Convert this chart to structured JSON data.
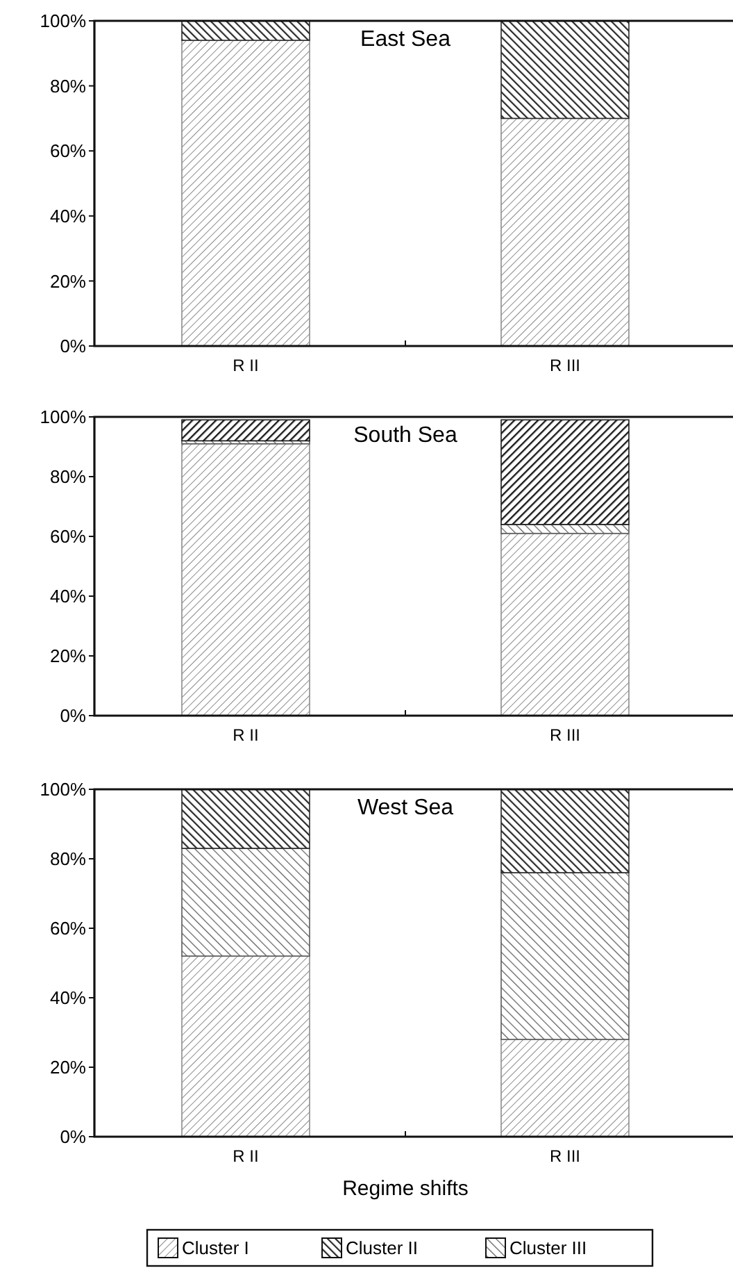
{
  "chart_data": [
    {
      "type": "bar",
      "title": "East Sea",
      "stacked": true,
      "categories": [
        "R II",
        "R III"
      ],
      "ylim": [
        0,
        100
      ],
      "yticks": [
        {
          "value": 0,
          "label": "0%"
        },
        {
          "value": 20,
          "label": "20%"
        },
        {
          "value": 40,
          "label": "40%"
        },
        {
          "value": 60,
          "label": "60%"
        },
        {
          "value": 80,
          "label": "80%"
        },
        {
          "value": 100,
          "label": "100%"
        }
      ],
      "series": [
        {
          "color": "#8c8c8c",
          "values": [
            94,
            70
          ]
        },
        {
          "color": "#5a5a5a",
          "values": [
            0,
            0
          ]
        },
        {
          "color": "#2a2a2a",
          "values": [
            6,
            30
          ]
        },
        {
          "color": "#1a1a1a",
          "values": [
            0,
            0
          ]
        }
      ]
    },
    {
      "type": "bar",
      "title": "South Sea",
      "stacked": true,
      "categories": [
        "R II",
        "R III"
      ],
      "ylim": [
        0,
        100
      ],
      "yticks": [
        {
          "value": 0,
          "label": "0%"
        },
        {
          "value": 20,
          "label": "20%"
        },
        {
          "value": 40,
          "label": "40%"
        },
        {
          "value": 60,
          "label": "60%"
        },
        {
          "value": 80,
          "label": "80%"
        },
        {
          "value": 100,
          "label": "100%"
        }
      ],
      "series": [
        {
          "color": "#8c8c8c",
          "values": [
            91,
            61
          ]
        },
        {
          "color": "#5a5a5a",
          "values": [
            1,
            3
          ]
        },
        {
          "color": "#2a2a2a",
          "values": [
            0,
            0
          ]
        },
        {
          "color": "#1a1a1a",
          "values": [
            7,
            35
          ]
        }
      ]
    },
    {
      "type": "bar",
      "title": "West Sea",
      "stacked": true,
      "categories": [
        "R II",
        "R III"
      ],
      "xlabel": "Regime shifts",
      "legend": "bottom",
      "ylim": [
        0,
        100
      ],
      "yticks": [
        {
          "value": 0,
          "label": "0%"
        },
        {
          "value": 20,
          "label": "20%"
        },
        {
          "value": 40,
          "label": "40%"
        },
        {
          "value": 60,
          "label": "60%"
        },
        {
          "value": 80,
          "label": "80%"
        },
        {
          "value": 100,
          "label": "100%"
        }
      ],
      "series": [
        {
          "name": "Cluster I",
          "color": "#8c8c8c",
          "values": [
            52,
            28
          ]
        },
        {
          "name": "Cluster III",
          "color": "#5a5a5a",
          "values": [
            31,
            48
          ]
        },
        {
          "name": "Cluster II",
          "color": "#2a2a2a",
          "values": [
            17,
            24
          ]
        },
        {
          "color": "#1a1a1a",
          "values": [
            0,
            0
          ]
        }
      ]
    }
  ]
}
